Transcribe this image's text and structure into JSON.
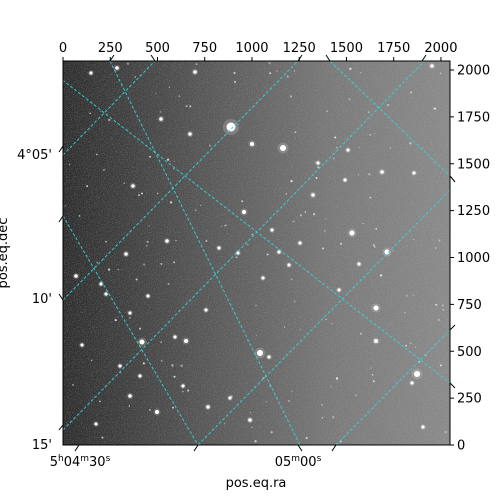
{
  "chart_data": {
    "type": "image",
    "description_colors": {
      "background": "#ffffff",
      "grid": "#36d6d6",
      "frame": "#000000"
    },
    "pixel_axes": {
      "x_ticks": [
        0,
        250,
        500,
        750,
        1000,
        1250,
        1500,
        1750,
        2000
      ],
      "y_ticks": [
        0,
        250,
        500,
        750,
        1000,
        1250,
        1500,
        1750,
        2000
      ],
      "xlim": [
        0,
        2048
      ],
      "ylim": [
        0,
        2048
      ]
    },
    "world_axes": {
      "xlabel": "pos.eq.ra",
      "ylabel": "pos.eq.dec",
      "ra_ticks": [
        "5h04m30s",
        "05m00s"
      ],
      "dec_ticks": [
        "4°05'",
        "10'",
        "15'"
      ]
    },
    "grid": true,
    "image_stretch": "grayscale, darker toward the left"
  }
}
